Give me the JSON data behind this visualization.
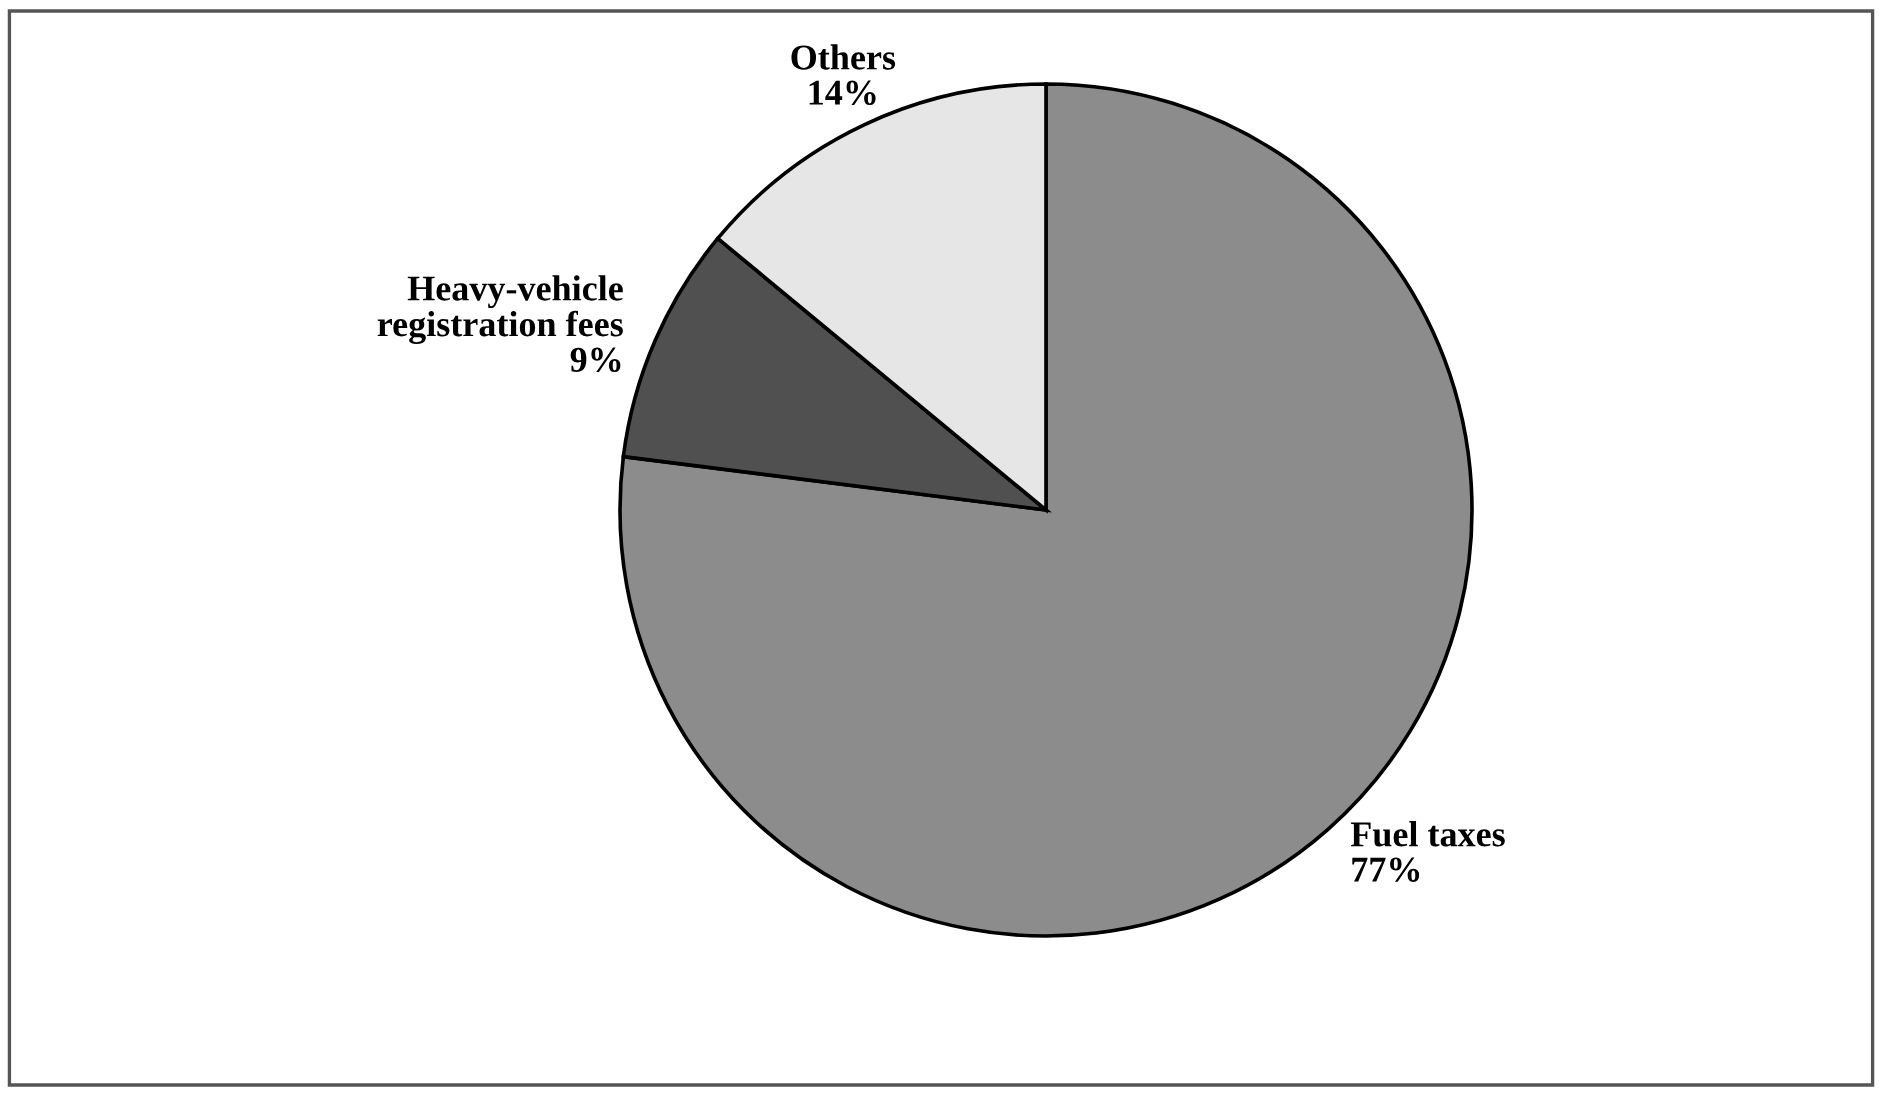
{
  "chart_data": {
    "type": "pie",
    "categories": [
      "Fuel taxes",
      "Heavy-vehicle registration fees",
      "Others"
    ],
    "values": [
      77,
      9,
      14
    ],
    "value_labels": [
      "77%",
      "9%",
      "14%"
    ],
    "colors": [
      "#8c8c8c",
      "#505050",
      "#e6e6e6"
    ],
    "legend": false
  }
}
